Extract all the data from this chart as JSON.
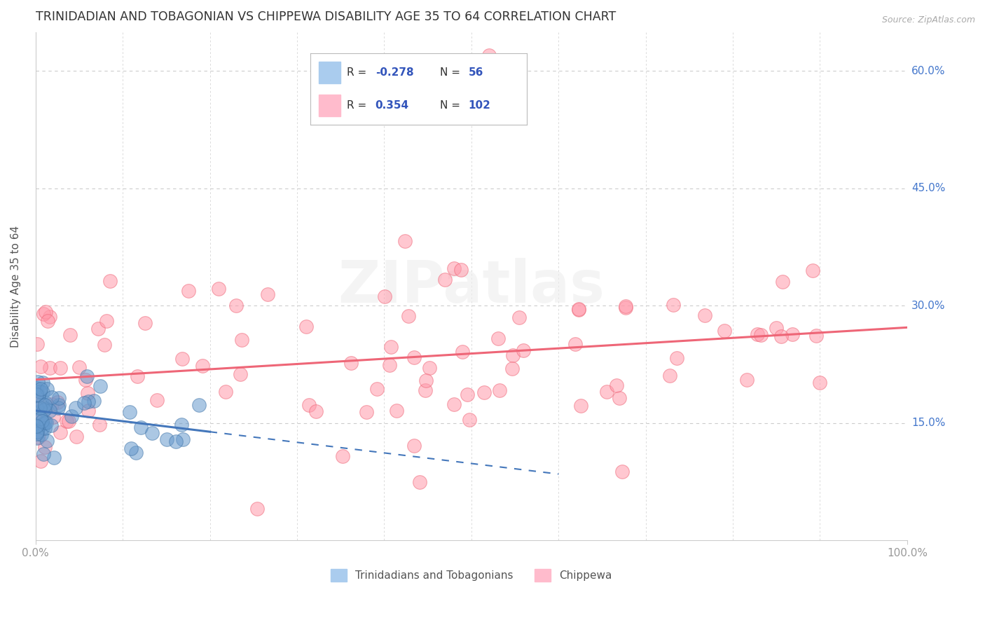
{
  "title": "TRINIDADIAN AND TOBAGONIAN VS CHIPPEWA DISABILITY AGE 35 TO 64 CORRELATION CHART",
  "source": "Source: ZipAtlas.com",
  "ylabel": "Disability Age 35 to 64",
  "xlim": [
    0,
    100
  ],
  "ylim": [
    0,
    65
  ],
  "xtick_positions": [
    0,
    100
  ],
  "xticklabels": [
    "0.0%",
    "100.0%"
  ],
  "ytick_positions": [
    0,
    15,
    30,
    45,
    60
  ],
  "yticklabels": [
    "0.0%",
    "15.0%",
    "30.0%",
    "45.0%",
    "60.0%"
  ],
  "background_color": "#ffffff",
  "blue_color": "#6699CC",
  "blue_edge": "#4477AA",
  "pink_color": "#FF99AA",
  "pink_edge": "#EE6677",
  "grid_color": "#cccccc",
  "title_color": "#333333",
  "axis_label_color": "#555555",
  "tick_label_color_blue": "#4477CC",
  "tick_label_color_gray": "#999999",
  "legend_R_color": "#3355BB",
  "legend_N_color": "#3355BB",
  "pink_line_color": "#EE6677",
  "blue_line_color": "#4477BB",
  "watermark_color": "#e8e8e8"
}
